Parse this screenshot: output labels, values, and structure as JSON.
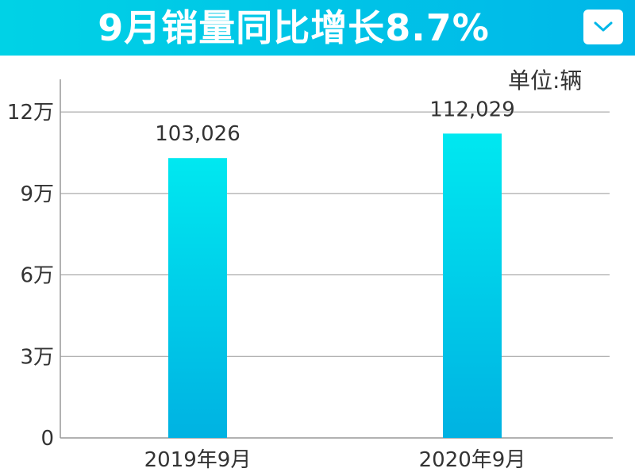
{
  "header": {
    "title": "9月销量同比增长8.7%",
    "dropdown_icon": "chevron-down-icon"
  },
  "unit_label": "单位:辆",
  "colors": {
    "header_start": "#00d2e6",
    "header_end": "#00b7e8",
    "bar_top": "#00e8f0",
    "bar_bottom": "#00b2e2",
    "grid": "#999999"
  },
  "chart_data": {
    "type": "bar",
    "categories": [
      "2019年9月",
      "2020年9月"
    ],
    "values": [
      103026,
      112029
    ],
    "data_labels": [
      "103,026",
      "112,029"
    ],
    "yticks": [
      0,
      30000,
      60000,
      90000,
      120000
    ],
    "ytick_labels": [
      "0",
      "3万",
      "6万",
      "9万",
      "12万"
    ],
    "ylim": [
      0,
      132000
    ],
    "grid": true
  }
}
